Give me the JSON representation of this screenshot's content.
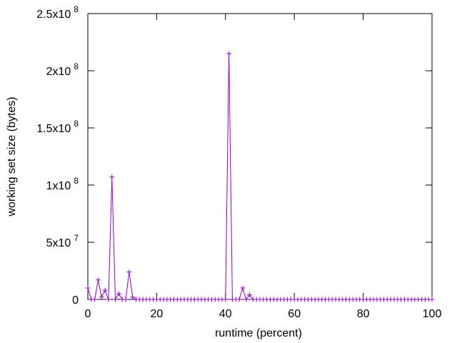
{
  "chart_data": {
    "type": "line",
    "title": "",
    "xlabel": "runtime (percent)",
    "ylabel": "working set size (bytes)",
    "xlim": [
      0,
      100
    ],
    "ylim": [
      0,
      250000000
    ],
    "grid": false,
    "legend": "none",
    "series_color": "#9400d3",
    "x_ticks": [
      {
        "value": 0,
        "label": "0"
      },
      {
        "value": 20,
        "label": "20"
      },
      {
        "value": 40,
        "label": "40"
      },
      {
        "value": 60,
        "label": "60"
      },
      {
        "value": 80,
        "label": "80"
      },
      {
        "value": 100,
        "label": "100"
      }
    ],
    "y_ticks": [
      {
        "value": 0,
        "mantissa": "0",
        "exponent": ""
      },
      {
        "value": 50000000,
        "mantissa": "5x10",
        "exponent": "7"
      },
      {
        "value": 100000000,
        "mantissa": "1x10",
        "exponent": "8"
      },
      {
        "value": 150000000,
        "mantissa": "1.5x10",
        "exponent": "8"
      },
      {
        "value": 200000000,
        "mantissa": "2x10",
        "exponent": "8"
      },
      {
        "value": 250000000,
        "mantissa": "2.5x10",
        "exponent": "8"
      }
    ],
    "series": [
      {
        "x": [
          0,
          1,
          2,
          3,
          4,
          5,
          6,
          7,
          8,
          9,
          10,
          11,
          12,
          13,
          14,
          15,
          16,
          17,
          18,
          19,
          20,
          21,
          22,
          23,
          24,
          25,
          26,
          27,
          28,
          29,
          30,
          31,
          32,
          33,
          34,
          35,
          36,
          37,
          38,
          39,
          40,
          41,
          42,
          43,
          44,
          45,
          46,
          47,
          48,
          49,
          50,
          51,
          52,
          53,
          54,
          55,
          56,
          57,
          58,
          59,
          60,
          61,
          62,
          63,
          64,
          65,
          66,
          67,
          68,
          69,
          70,
          71,
          72,
          73,
          74,
          75,
          76,
          77,
          78,
          79,
          80,
          81,
          82,
          83,
          84,
          85,
          86,
          87,
          88,
          89,
          90,
          91,
          92,
          93,
          94,
          95,
          96,
          97,
          98,
          99,
          100
        ],
        "y": [
          10000000,
          0,
          0,
          17000000,
          2000000,
          8000000,
          0,
          107000000,
          0,
          5000000,
          0,
          0,
          24000000,
          2000000,
          0,
          0,
          0,
          0,
          0,
          0,
          0,
          0,
          0,
          0,
          0,
          0,
          0,
          0,
          0,
          0,
          0,
          0,
          0,
          0,
          0,
          0,
          0,
          0,
          0,
          0,
          0,
          215000000,
          0,
          0,
          0,
          10000000,
          0,
          4000000,
          0,
          0,
          0,
          0,
          0,
          0,
          0,
          0,
          0,
          0,
          0,
          0,
          0,
          0,
          0,
          0,
          0,
          0,
          0,
          0,
          0,
          0,
          0,
          0,
          0,
          0,
          0,
          0,
          0,
          0,
          0,
          0,
          0,
          0,
          0,
          0,
          0,
          0,
          0,
          0,
          0,
          0,
          0,
          0,
          0,
          0,
          0,
          0,
          0,
          0,
          0,
          0,
          0
        ]
      }
    ]
  }
}
